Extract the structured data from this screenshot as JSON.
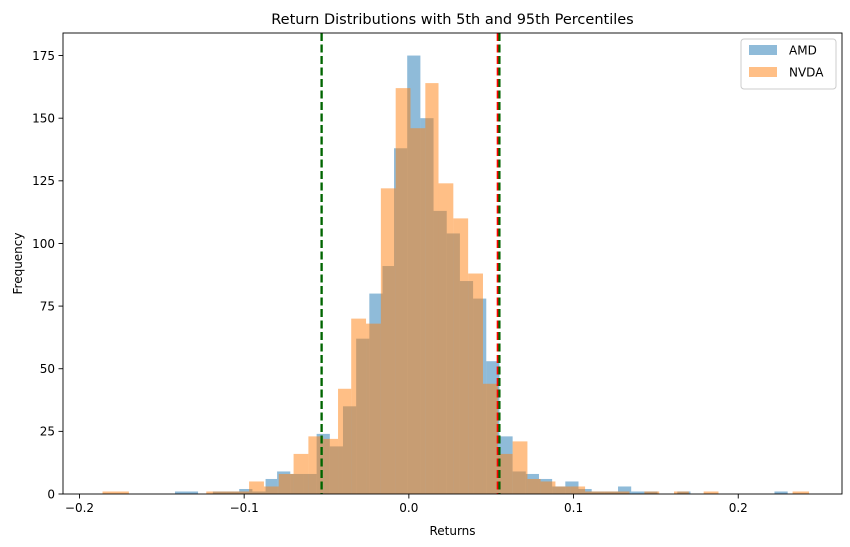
{
  "chart_data": {
    "type": "histogram",
    "title": "Return Distributions with 5th and 95th Percentiles",
    "xlabel": "Returns",
    "ylabel": "Frequency",
    "xlim": [
      -0.21,
      0.263
    ],
    "ylim": [
      0,
      184
    ],
    "xticks": [
      -0.2,
      -0.1,
      0.0,
      0.1,
      0.2
    ],
    "xtick_labels": [
      "−0.2",
      "−0.1",
      "0.0",
      "0.1",
      "0.2"
    ],
    "yticks": [
      0,
      25,
      50,
      75,
      100,
      125,
      150,
      175
    ],
    "ytick_labels": [
      "0",
      "25",
      "50",
      "75",
      "100",
      "125",
      "150",
      "175"
    ],
    "grid": false,
    "legend_position": "top-right",
    "series": [
      {
        "name": "AMD",
        "color": "#1f77b4",
        "opacity": 0.5,
        "bins": [
          [
            -0.142,
            -0.128,
            1
          ],
          [
            -0.119,
            -0.111,
            1
          ],
          [
            -0.111,
            -0.103,
            1
          ],
          [
            -0.103,
            -0.095,
            2
          ],
          [
            -0.095,
            -0.087,
            1
          ],
          [
            -0.087,
            -0.08,
            6
          ],
          [
            -0.08,
            -0.072,
            9
          ],
          [
            -0.072,
            -0.064,
            8
          ],
          [
            -0.064,
            -0.056,
            8
          ],
          [
            -0.056,
            -0.048,
            24
          ],
          [
            -0.048,
            -0.04,
            19
          ],
          [
            -0.04,
            -0.032,
            35
          ],
          [
            -0.032,
            -0.024,
            62
          ],
          [
            -0.024,
            -0.016,
            80
          ],
          [
            -0.016,
            -0.009,
            91
          ],
          [
            -0.009,
            -0.001,
            138
          ],
          [
            -0.001,
            0.007,
            175
          ],
          [
            0.007,
            0.015,
            150
          ],
          [
            0.015,
            0.023,
            113
          ],
          [
            0.023,
            0.031,
            104
          ],
          [
            0.031,
            0.039,
            85
          ],
          [
            0.039,
            0.047,
            78
          ],
          [
            0.047,
            0.055,
            53
          ],
          [
            0.055,
            0.063,
            23
          ],
          [
            0.063,
            0.071,
            9
          ],
          [
            0.071,
            0.079,
            8
          ],
          [
            0.079,
            0.087,
            6
          ],
          [
            0.087,
            0.095,
            3
          ],
          [
            0.095,
            0.103,
            5
          ],
          [
            0.103,
            0.111,
            2
          ],
          [
            0.111,
            0.119,
            1
          ],
          [
            0.119,
            0.127,
            1
          ],
          [
            0.127,
            0.135,
            3
          ],
          [
            0.135,
            0.143,
            1
          ],
          [
            0.143,
            0.151,
            1
          ],
          [
            0.163,
            0.171,
            1
          ],
          [
            0.222,
            0.23,
            1
          ]
        ]
      },
      {
        "name": "NVDA",
        "color": "#ff7f0e",
        "opacity": 0.5,
        "bins": [
          [
            -0.186,
            -0.17,
            1
          ],
          [
            -0.123,
            -0.115,
            1
          ],
          [
            -0.115,
            -0.106,
            1
          ],
          [
            -0.106,
            -0.097,
            1
          ],
          [
            -0.097,
            -0.088,
            5
          ],
          [
            -0.088,
            -0.079,
            3
          ],
          [
            -0.079,
            -0.07,
            8
          ],
          [
            -0.07,
            -0.061,
            16
          ],
          [
            -0.061,
            -0.052,
            23
          ],
          [
            -0.052,
            -0.043,
            22
          ],
          [
            -0.043,
            -0.035,
            42
          ],
          [
            -0.035,
            -0.026,
            70
          ],
          [
            -0.026,
            -0.017,
            68
          ],
          [
            -0.017,
            -0.008,
            122
          ],
          [
            -0.008,
            0.001,
            162
          ],
          [
            0.001,
            0.01,
            146
          ],
          [
            0.01,
            0.018,
            164
          ],
          [
            0.018,
            0.027,
            124
          ],
          [
            0.027,
            0.036,
            110
          ],
          [
            0.036,
            0.045,
            88
          ],
          [
            0.045,
            0.054,
            44
          ],
          [
            0.054,
            0.063,
            16
          ],
          [
            0.063,
            0.072,
            21
          ],
          [
            0.072,
            0.08,
            6
          ],
          [
            0.08,
            0.089,
            5
          ],
          [
            0.089,
            0.098,
            3
          ],
          [
            0.098,
            0.107,
            3
          ],
          [
            0.107,
            0.116,
            1
          ],
          [
            0.116,
            0.125,
            1
          ],
          [
            0.125,
            0.134,
            1
          ],
          [
            0.143,
            0.152,
            1
          ],
          [
            0.161,
            0.17,
            1
          ],
          [
            0.179,
            0.188,
            1
          ],
          [
            0.233,
            0.243,
            1
          ]
        ]
      }
    ],
    "reference_lines": [
      {
        "name": "AMD 5th percentile",
        "x": -0.053,
        "color": "#008000",
        "style": "dashed"
      },
      {
        "name": "NVDA 5th percentile",
        "x": -0.053,
        "color": "#006400",
        "style": "dashed"
      },
      {
        "name": "AMD 95th percentile",
        "x": 0.054,
        "color": "#ff0000",
        "style": "dashed"
      },
      {
        "name": "NVDA 95th percentile",
        "x": 0.055,
        "color": "#006400",
        "style": "dashed"
      }
    ]
  }
}
